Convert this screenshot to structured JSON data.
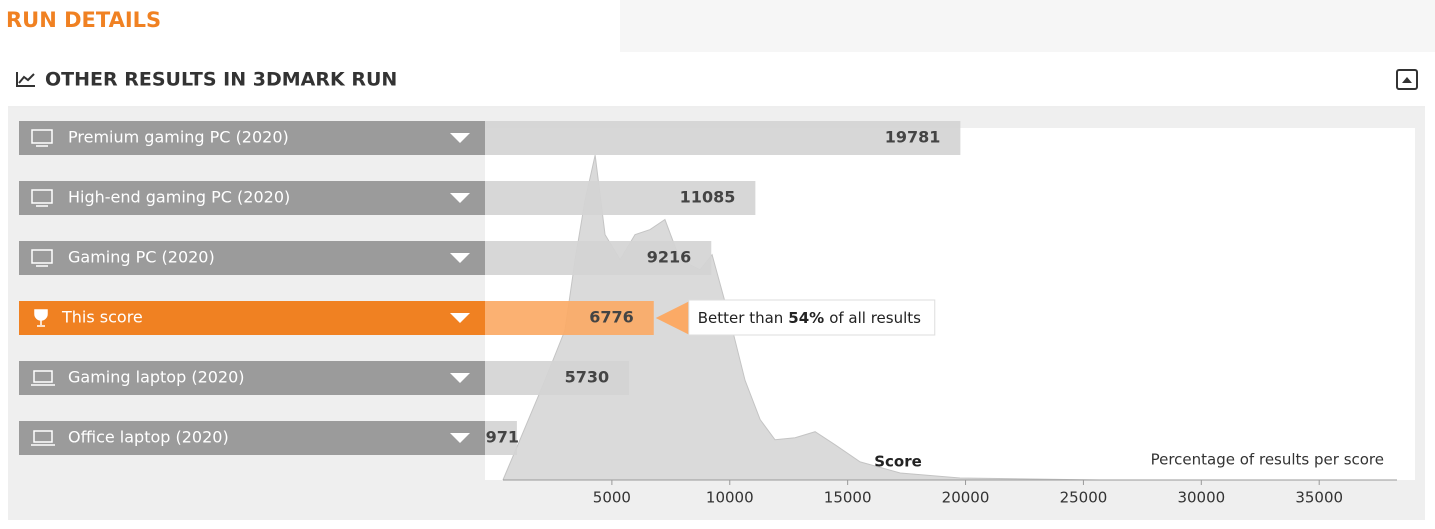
{
  "header": {
    "title": "RUN DETAILS"
  },
  "panel": {
    "title": "OTHER RESULTS IN 3DMARK RUN"
  },
  "chart_data": [
    {
      "type": "bar",
      "categories": [
        "Premium gaming PC (2020)",
        "High-end gaming PC (2020)",
        "Gaming PC (2020)",
        "This score",
        "Gaming laptop (2020)",
        "Office laptop (2020)"
      ],
      "values": [
        19781,
        11085,
        9216,
        6776,
        5730,
        971
      ],
      "colors": [
        "#d4d4d4",
        "#d4d4d4",
        "#d4d4d4",
        "#fbaa66",
        "#d4d4d4",
        "#d4d4d4"
      ],
      "label_colors": [
        "#9b9b9b",
        "#9b9b9b",
        "#9b9b9b",
        "#f08122",
        "#9b9b9b",
        "#9b9b9b"
      ],
      "icons": [
        "desktop",
        "desktop",
        "desktop",
        "trophy",
        "laptop",
        "laptop"
      ],
      "annotation": {
        "prefix": "Better than",
        "highlight": "54%",
        "suffix": "of all results"
      }
    },
    {
      "type": "area",
      "x": [
        380,
        1100,
        2160,
        3010,
        3440,
        3860,
        4290,
        4710,
        5350,
        5980,
        6620,
        7250,
        7890,
        8740,
        9250,
        10010,
        10650,
        11290,
        11920,
        12770,
        13620,
        14470,
        15530,
        17230,
        19770,
        25710,
        38000
      ],
      "values": [
        0,
        0.4,
        0.99,
        1.49,
        2.19,
        2.78,
        3.23,
        2.44,
        2.19,
        2.44,
        2.49,
        2.59,
        2.19,
        2.09,
        2.24,
        1.59,
        0.99,
        0.6,
        0.4,
        0.42,
        0.48,
        0.35,
        0.18,
        0.07,
        0.02,
        0,
        0
      ],
      "color": "#dadada",
      "xlim": [
        0,
        38300
      ],
      "ylim": [
        0,
        3.5
      ],
      "xticks": [
        5000,
        10000,
        15000,
        20000,
        25000,
        30000,
        35000
      ],
      "x_label": "Score",
      "y_label": "Percentage of results per score"
    }
  ]
}
